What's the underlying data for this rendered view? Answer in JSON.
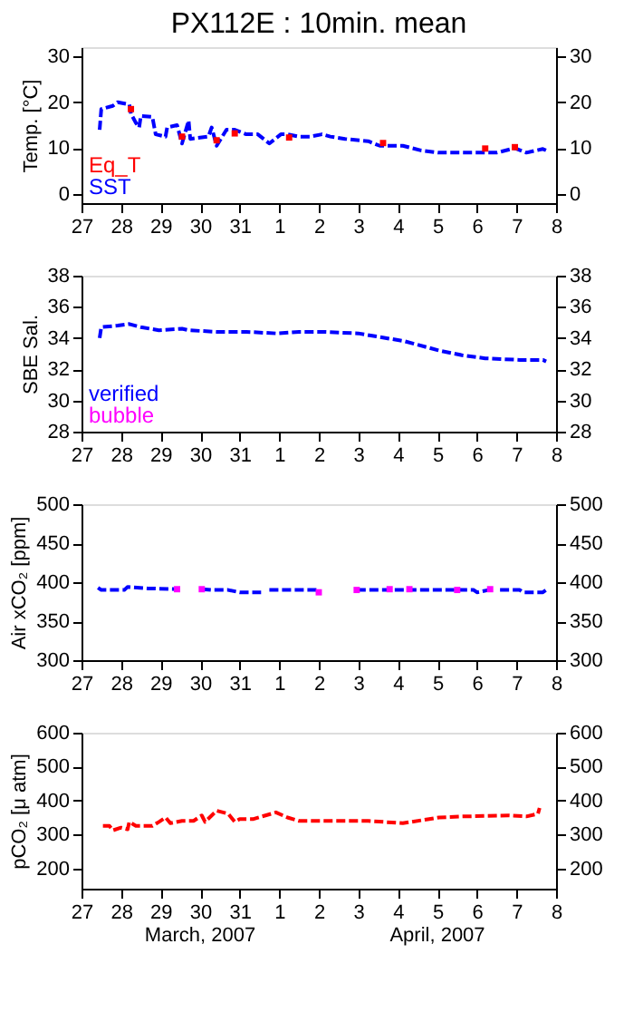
{
  "chart_data": [
    {
      "type": "line",
      "title": "PX112E : 10min. mean",
      "ylabel": "Temp. [°C]",
      "legend": "bottom left",
      "xlim": [
        "2007-03-27",
        "2007-04-08"
      ],
      "xticks": [
        {
          "value": "2007-03-27",
          "label": "27"
        },
        {
          "value": "2007-03-28",
          "label": "28"
        },
        {
          "value": "2007-03-29",
          "label": "29"
        },
        {
          "value": "2007-03-30",
          "label": "30"
        },
        {
          "value": "2007-03-31",
          "label": "31"
        },
        {
          "value": "2007-04-01",
          "label": "1"
        },
        {
          "value": "2007-04-02",
          "label": "2"
        },
        {
          "value": "2007-04-03",
          "label": "3"
        },
        {
          "value": "2007-04-04",
          "label": "4"
        },
        {
          "value": "2007-04-05",
          "label": "5"
        },
        {
          "value": "2007-04-06",
          "label": "6"
        },
        {
          "value": "2007-04-07",
          "label": "7"
        },
        {
          "value": "2007-04-08",
          "label": "8"
        }
      ],
      "ylim": [
        -2,
        32
      ],
      "yticks": [
        0,
        10,
        20,
        30
      ],
      "y2lim": [
        -2,
        32
      ],
      "y2ticks": [
        0,
        10,
        20,
        30
      ],
      "series": [
        {
          "name": "Eq_T",
          "type": "scatter",
          "marker": "square",
          "color": "#ff0000",
          "x": [
            "2007-03-28T06:00",
            "2007-03-29T13:00",
            "2007-03-30T10:00",
            "2007-03-30T21:00",
            "2007-04-01T06:00",
            "2007-04-03T15:00",
            "2007-04-06T05:00",
            "2007-04-06T23:00"
          ],
          "values": [
            18.5,
            12.5,
            11.7,
            13.2,
            12.3,
            11.1,
            9.9,
            10.2
          ]
        },
        {
          "name": "SST",
          "color": "#0000ff",
          "line_style": "dashed",
          "x": [
            "2007-03-27T11:00",
            "2007-03-27T12:00",
            "2007-03-27T19:00",
            "2007-03-27T22:00",
            "2007-03-28T05:00",
            "2007-03-28T06:00",
            "2007-03-28T09:00",
            "2007-03-28T11:00",
            "2007-03-28T12:00",
            "2007-03-28T19:00",
            "2007-03-28T21:00",
            "2007-03-29T03:00",
            "2007-03-29T04:00",
            "2007-03-29T10:00",
            "2007-03-29T13:00",
            "2007-03-29T17:00",
            "2007-03-29T18:00",
            "2007-03-30T05:00",
            "2007-03-30T07:00",
            "2007-03-30T10:00",
            "2007-03-30T16:00",
            "2007-03-30T21:00",
            "2007-03-31T04:00",
            "2007-03-31T11:00",
            "2007-03-31T18:00",
            "2007-04-01T01:00",
            "2007-04-01T05:00",
            "2007-04-01T12:00",
            "2007-04-01T19:00",
            "2007-04-02T02:00",
            "2007-04-02T07:00",
            "2007-04-02T16:00",
            "2007-04-03T06:00",
            "2007-04-03T13:00",
            "2007-04-04T03:00",
            "2007-04-04T14:00",
            "2007-04-05T01:00",
            "2007-04-05T15:00",
            "2007-04-06T01:00",
            "2007-04-06T12:00",
            "2007-04-06T23:00",
            "2007-04-07T06:00",
            "2007-04-07T16:00",
            "2007-04-07T18:00"
          ],
          "values": [
            14,
            18.5,
            19.2,
            20,
            19.5,
            17.5,
            15.5,
            14.5,
            17,
            16.8,
            13,
            12.5,
            14.5,
            15,
            11,
            16,
            12,
            12.5,
            14.5,
            10.5,
            14,
            14,
            13,
            13,
            11,
            13,
            13,
            12.5,
            12.5,
            13,
            12.5,
            12,
            11.5,
            10.5,
            10.5,
            9.5,
            9,
            9,
            9,
            9,
            10,
            9,
            9.8,
            9.5
          ]
        }
      ]
    },
    {
      "type": "line",
      "ylabel": "SBE Sal.",
      "legend": "bottom left",
      "line_style": "dashed",
      "xlim": [
        "2007-03-27",
        "2007-04-08"
      ],
      "xticks": [
        {
          "value": "2007-03-27",
          "label": "27"
        },
        {
          "value": "2007-03-28",
          "label": "28"
        },
        {
          "value": "2007-03-29",
          "label": "29"
        },
        {
          "value": "2007-03-30",
          "label": "30"
        },
        {
          "value": "2007-03-31",
          "label": "31"
        },
        {
          "value": "2007-04-01",
          "label": "1"
        },
        {
          "value": "2007-04-02",
          "label": "2"
        },
        {
          "value": "2007-04-03",
          "label": "3"
        },
        {
          "value": "2007-04-04",
          "label": "4"
        },
        {
          "value": "2007-04-05",
          "label": "5"
        },
        {
          "value": "2007-04-06",
          "label": "6"
        },
        {
          "value": "2007-04-07",
          "label": "7"
        },
        {
          "value": "2007-04-08",
          "label": "8"
        }
      ],
      "ylim": [
        28,
        38
      ],
      "yticks": [
        28,
        30,
        32,
        34,
        36,
        38
      ],
      "y2lim": [
        28,
        38
      ],
      "y2ticks": [
        28,
        30,
        32,
        34,
        36,
        38
      ],
      "x": [
        "2007-03-27T11:00",
        "2007-03-27T12:00",
        "2007-03-27T22:00",
        "2007-03-28T05:00",
        "2007-03-28T12:00",
        "2007-03-28T23:00",
        "2007-03-29T13:00",
        "2007-03-29T17:00",
        "2007-03-30T10:00",
        "2007-03-31T04:00",
        "2007-03-31T22:00",
        "2007-04-01T12:00",
        "2007-04-02T02:00",
        "2007-04-03T00:00",
        "2007-04-03T11:00",
        "2007-04-04T04:00",
        "2007-04-04T18:00",
        "2007-04-05T01:00",
        "2007-04-05T15:00",
        "2007-04-06T05:00",
        "2007-04-07T02:00",
        "2007-04-07T16:00",
        "2007-04-07T18:00"
      ],
      "series": [
        {
          "name": "verified",
          "color": "#0000ff",
          "values": [
            34.0,
            34.7,
            34.8,
            34.9,
            34.7,
            34.5,
            34.6,
            34.5,
            34.4,
            34.4,
            34.3,
            34.4,
            34.4,
            34.3,
            34.1,
            33.8,
            33.4,
            33.2,
            32.9,
            32.7,
            32.6,
            32.6,
            32.5
          ]
        },
        {
          "name": "bubble",
          "color": "#ff00ff",
          "values": [
            null,
            null,
            null,
            null,
            null,
            null,
            null,
            null,
            null,
            null,
            null,
            null,
            null,
            null,
            null,
            null,
            null,
            null,
            null,
            null,
            null,
            null,
            null
          ]
        }
      ]
    },
    {
      "type": "line",
      "ylabel": "Air xCO₂ [ppm]",
      "line_style": "dashed",
      "xlim": [
        "2007-03-27",
        "2007-04-08"
      ],
      "xticks": [
        {
          "value": "2007-03-27",
          "label": "27"
        },
        {
          "value": "2007-03-28",
          "label": "28"
        },
        {
          "value": "2007-03-29",
          "label": "29"
        },
        {
          "value": "2007-03-30",
          "label": "30"
        },
        {
          "value": "2007-03-31",
          "label": "31"
        },
        {
          "value": "2007-04-01",
          "label": "1"
        },
        {
          "value": "2007-04-02",
          "label": "2"
        },
        {
          "value": "2007-04-03",
          "label": "3"
        },
        {
          "value": "2007-04-04",
          "label": "4"
        },
        {
          "value": "2007-04-05",
          "label": "5"
        },
        {
          "value": "2007-04-06",
          "label": "6"
        },
        {
          "value": "2007-04-07",
          "label": "7"
        },
        {
          "value": "2007-04-08",
          "label": "8"
        }
      ],
      "ylim": [
        300,
        500
      ],
      "yticks": [
        300,
        350,
        400,
        450,
        500
      ],
      "y2lim": [
        300,
        500
      ],
      "y2ticks": [
        300,
        350,
        400,
        450,
        500
      ],
      "series": [
        {
          "color": "#0000ff",
          "x": [
            "2007-03-27T10:00",
            "2007-03-27T12:00",
            "2007-03-28T02:00",
            "2007-03-28T04:00",
            "2007-03-28T16:00",
            "2007-03-29T11:00",
            "2007-03-29T18:00",
            "2007-03-30T01:00",
            "2007-03-30T07:00",
            "2007-03-30T17:00",
            "2007-03-31T00:00",
            "2007-03-31T13:00",
            "2007-03-31T15:00",
            "2007-03-31T18:00",
            "2007-04-01T23:00",
            "2007-04-02T00:00",
            "2007-04-02T12:00",
            "2007-04-02T23:00",
            "2007-04-05T22:00",
            "2007-04-06T00:00",
            "2007-04-06T07:00",
            "2007-04-06T09:00",
            "2007-04-06T14:00",
            "2007-04-07T02:00",
            "2007-04-07T04:00",
            "2007-04-07T16:00",
            "2007-04-07T18:00",
            "2007-04-07T19:00"
          ],
          "values": [
            393,
            390,
            390,
            394,
            392,
            391,
            null,
            391,
            390,
            390,
            387,
            387,
            null,
            390,
            390,
            387,
            null,
            390,
            390,
            387,
            390,
            null,
            390,
            390,
            387,
            387,
            390,
            392
          ]
        },
        {
          "type": "scatter",
          "marker": "square",
          "color": "#ff00ff",
          "x": [
            "2007-03-29T10:00",
            "2007-03-30T01:00",
            "2007-04-02T00:00",
            "2007-04-02T23:00",
            "2007-04-03T19:00",
            "2007-04-04T07:00",
            "2007-04-05T12:00",
            "2007-04-06T08:00"
          ],
          "values": [
            391,
            391,
            387,
            390,
            391,
            391,
            390,
            391
          ]
        }
      ]
    },
    {
      "type": "line",
      "ylabel": "pCO₂ [μ atm]",
      "line_style": "dashed",
      "xlim": [
        "2007-03-27",
        "2007-04-08"
      ],
      "xticks": [
        {
          "value": "2007-03-27",
          "label": "27"
        },
        {
          "value": "2007-03-28",
          "label": "28"
        },
        {
          "value": "2007-03-29",
          "label": "29"
        },
        {
          "value": "2007-03-30",
          "label": "30"
        },
        {
          "value": "2007-03-31",
          "label": "31"
        },
        {
          "value": "2007-04-01",
          "label": "1"
        },
        {
          "value": "2007-04-02",
          "label": "2"
        },
        {
          "value": "2007-04-03",
          "label": "3"
        },
        {
          "value": "2007-04-04",
          "label": "4"
        },
        {
          "value": "2007-04-05",
          "label": "5"
        },
        {
          "value": "2007-04-06",
          "label": "6"
        },
        {
          "value": "2007-04-07",
          "label": "7"
        },
        {
          "value": "2007-04-08",
          "label": "8"
        }
      ],
      "ylim": [
        140,
        600
      ],
      "yticks": [
        200,
        300,
        400,
        500,
        600
      ],
      "y2lim": [
        140,
        600
      ],
      "y2ticks": [
        200,
        300,
        400,
        500,
        600
      ],
      "annotations": [
        "March, 2007",
        "April, 2007"
      ],
      "series": [
        {
          "color": "#ff0000",
          "x": [
            "2007-03-27T13:00",
            "2007-03-27T17:00",
            "2007-03-27T19:00",
            "2007-03-28T00:00",
            "2007-03-28T04:00",
            "2007-03-28T05:00",
            "2007-03-28T09:00",
            "2007-03-28T19:00",
            "2007-03-28T23:00",
            "2007-03-29T03:00",
            "2007-03-29T06:00",
            "2007-03-29T13:00",
            "2007-03-29T20:00",
            "2007-03-30T01:00",
            "2007-03-30T03:00",
            "2007-03-30T10:00",
            "2007-03-30T17:00",
            "2007-03-30T21:00",
            "2007-03-31T00:00",
            "2007-03-31T08:00",
            "2007-03-31T22:00",
            "2007-04-01T05:00",
            "2007-04-01T12:00",
            "2007-04-02T02:00",
            "2007-04-03T06:00",
            "2007-04-04T03:00",
            "2007-04-05T01:00",
            "2007-04-05T15:00",
            "2007-04-06T19:00",
            "2007-04-07T06:00",
            "2007-04-07T13:00",
            "2007-04-07T14:00"
          ],
          "values": [
            325,
            325,
            312,
            320,
            315,
            337,
            325,
            325,
            337,
            350,
            333,
            340,
            340,
            356,
            337,
            370,
            361,
            337,
            345,
            345,
            365,
            350,
            340,
            340,
            340,
            333,
            350,
            353,
            356,
            353,
            361,
            378
          ]
        }
      ]
    }
  ]
}
